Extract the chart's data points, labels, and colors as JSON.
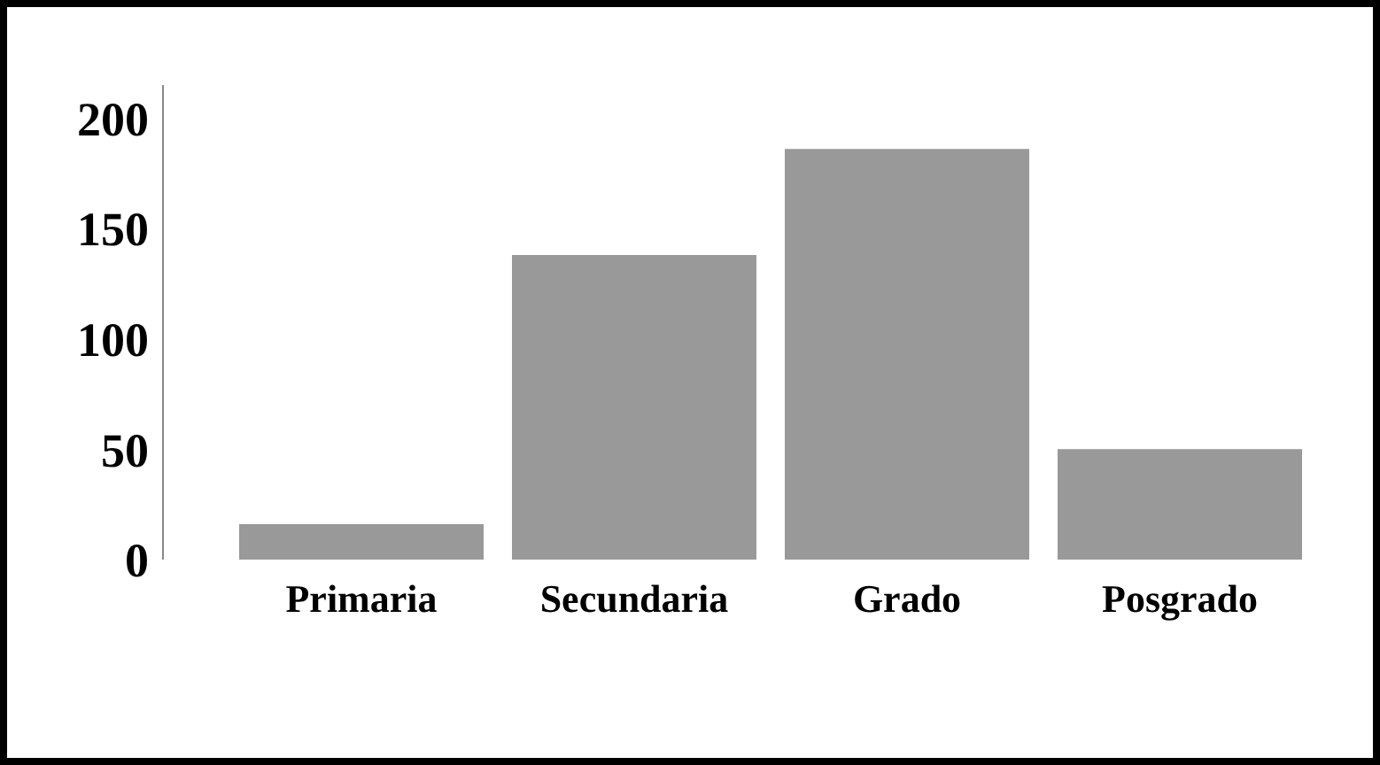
{
  "chart_data": {
    "type": "bar",
    "categories": [
      "Primaria",
      "Secundaria",
      "Grado",
      "Posgrado"
    ],
    "values": [
      16,
      138,
      186,
      50
    ],
    "color": "#999999",
    "ylim": [
      0,
      215
    ],
    "yticks": [
      0,
      50,
      100,
      150,
      200
    ],
    "grid": false,
    "legend": false
  }
}
